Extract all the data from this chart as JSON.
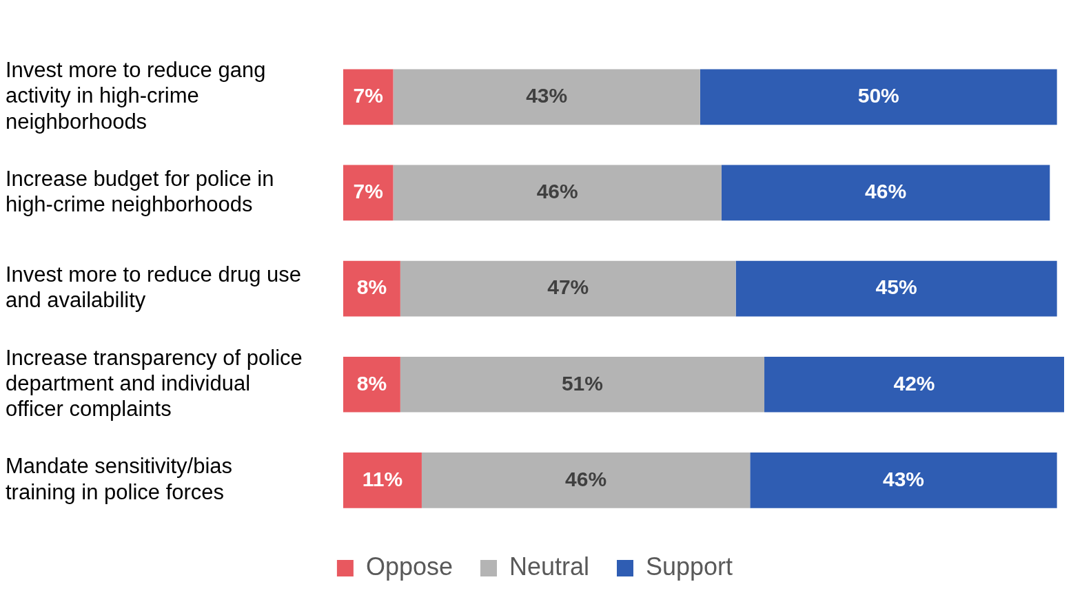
{
  "chart_data": {
    "type": "bar",
    "orientation": "horizontal",
    "stacked": true,
    "legend": "bottom",
    "tick_labels": "y",
    "categories": [
      "Invest more to reduce gang activity in high-crime neighborhoods",
      "Increase budget for police in high-crime neighborhoods",
      "Invest more to reduce drug use and availability",
      "Increase transparency of police department and individual officer complaints",
      "Mandate sensitivity/bias training in police forces"
    ],
    "series": [
      {
        "name": "Oppose",
        "color": "#e8585f",
        "values": [
          7,
          7,
          8,
          8,
          11
        ],
        "value_labels": [
          "7%",
          "7%",
          "8%",
          "8%",
          "11%"
        ]
      },
      {
        "name": "Neutral",
        "color": "#b4b4b4",
        "values": [
          43,
          46,
          47,
          51,
          46
        ],
        "value_labels": [
          "43%",
          "46%",
          "47%",
          "51%",
          "46%"
        ]
      },
      {
        "name": "Support",
        "color": "#2f5db3",
        "values": [
          50,
          46,
          45,
          42,
          43
        ],
        "value_labels": [
          "50%",
          "46%",
          "45%",
          "42%",
          "43%"
        ]
      }
    ]
  }
}
